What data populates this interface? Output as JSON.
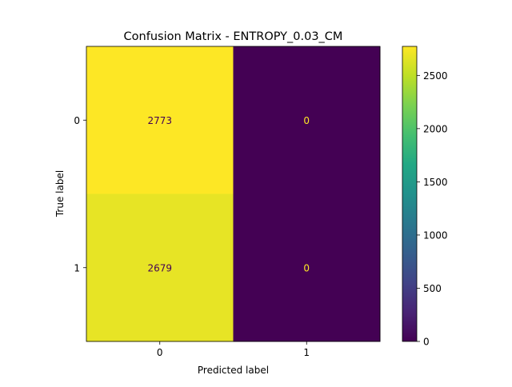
{
  "chart_data": {
    "type": "heatmap",
    "title": "Confusion Matrix - ENTROPY_0.03_CM",
    "xlabel": "Predicted label",
    "ylabel": "True label",
    "x_categories": [
      "0",
      "1"
    ],
    "y_categories": [
      "0",
      "1"
    ],
    "values": [
      [
        2773,
        0
      ],
      [
        2679,
        0
      ]
    ],
    "colormap": "viridis",
    "colorbar": {
      "range": [
        0,
        2773
      ],
      "ticks": [
        0,
        500,
        1000,
        1500,
        2000,
        2500
      ],
      "tick_labels": [
        "0",
        "500",
        "1000",
        "1500",
        "2000",
        "2500"
      ]
    },
    "grid": false,
    "annotation_colors": {
      "on_light": "#440154",
      "on_dark": "#fde725"
    }
  }
}
